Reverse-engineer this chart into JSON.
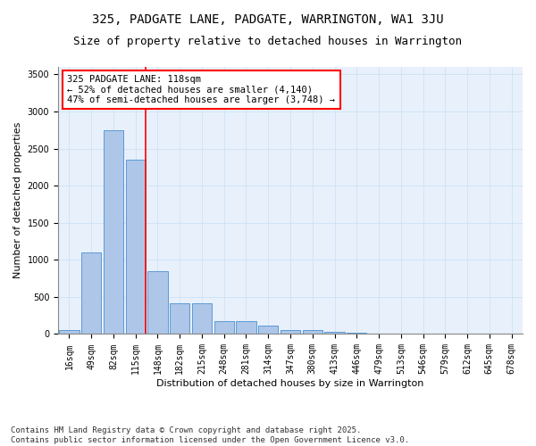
{
  "title1": "325, PADGATE LANE, PADGATE, WARRINGTON, WA1 3JU",
  "title2": "Size of property relative to detached houses in Warrington",
  "xlabel": "Distribution of detached houses by size in Warrington",
  "ylabel": "Number of detached properties",
  "categories": [
    "16sqm",
    "49sqm",
    "82sqm",
    "115sqm",
    "148sqm",
    "182sqm",
    "215sqm",
    "248sqm",
    "281sqm",
    "314sqm",
    "347sqm",
    "380sqm",
    "413sqm",
    "446sqm",
    "479sqm",
    "513sqm",
    "546sqm",
    "579sqm",
    "612sqm",
    "645sqm",
    "678sqm"
  ],
  "values": [
    55,
    1100,
    2750,
    2350,
    850,
    420,
    420,
    175,
    175,
    115,
    50,
    50,
    30,
    20,
    10,
    5,
    5,
    2,
    2,
    1,
    1
  ],
  "bar_color": "#aec6e8",
  "bar_edge_color": "#5b9bd5",
  "vline_color": "red",
  "annotation_line1": "325 PADGATE LANE: 118sqm",
  "annotation_line2": "← 52% of detached houses are smaller (4,140)",
  "annotation_line3": "47% of semi-detached houses are larger (3,748) →",
  "annotation_box_color": "white",
  "annotation_box_edge_color": "red",
  "ylim": [
    0,
    3600
  ],
  "yticks": [
    0,
    500,
    1000,
    1500,
    2000,
    2500,
    3000,
    3500
  ],
  "grid_color": "#d0e4f7",
  "background_color": "#e8f0fb",
  "footer1": "Contains HM Land Registry data © Crown copyright and database right 2025.",
  "footer2": "Contains public sector information licensed under the Open Government Licence v3.0.",
  "title_fontsize": 10,
  "subtitle_fontsize": 9,
  "annotation_fontsize": 7.5,
  "axis_label_fontsize": 8,
  "tick_fontsize": 7,
  "footer_fontsize": 6.5
}
